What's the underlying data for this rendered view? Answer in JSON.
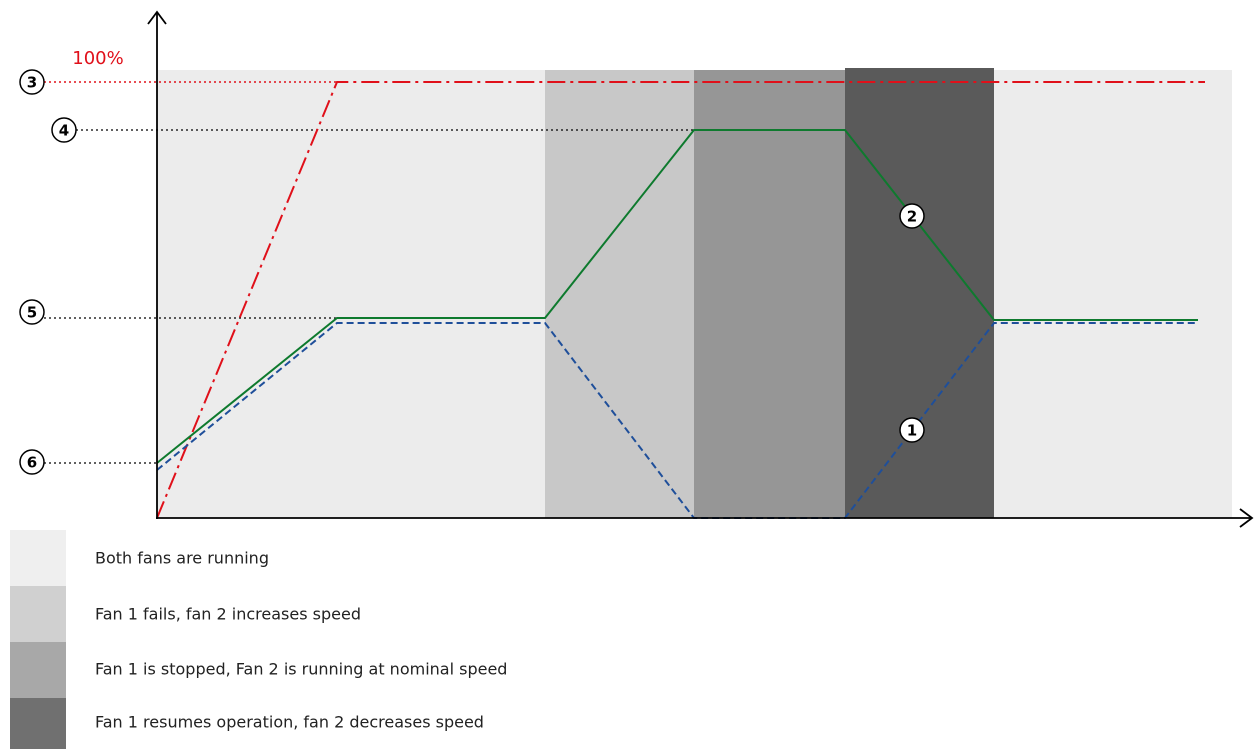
{
  "top_label": "100%",
  "callouts": [
    "1",
    "2",
    "3",
    "4",
    "5",
    "6"
  ],
  "legend": [
    "Both fans are running",
    "Fan 1 fails, fan 2 increases speed",
    "Fan 1 is stopped, Fan 2 is running at nominal speed",
    "Fan 1 resumes operation, fan 2 decreases speed"
  ]
}
